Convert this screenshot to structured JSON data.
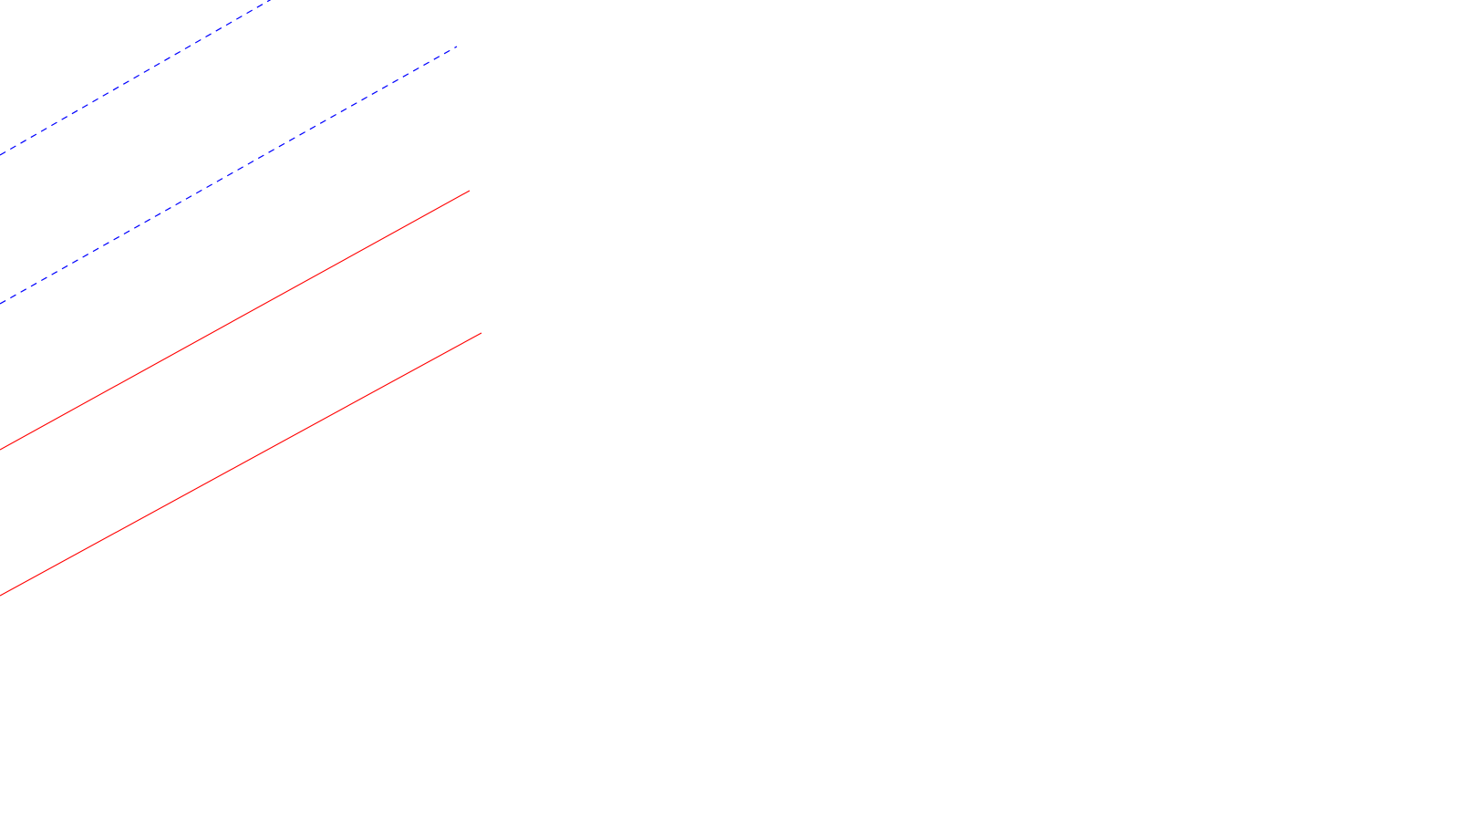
{
  "canvas": {
    "background": "#ffffff"
  },
  "lines": [
    {
      "id": "dashed-line-upper",
      "style": "dashed",
      "color": "#0000ff"
    },
    {
      "id": "dashed-line-lower",
      "style": "dashed",
      "color": "#0000ff"
    },
    {
      "id": "solid-line-upper",
      "style": "solid",
      "color": "#ff0000"
    },
    {
      "id": "solid-line-lower",
      "style": "solid",
      "color": "#ff0000"
    }
  ]
}
